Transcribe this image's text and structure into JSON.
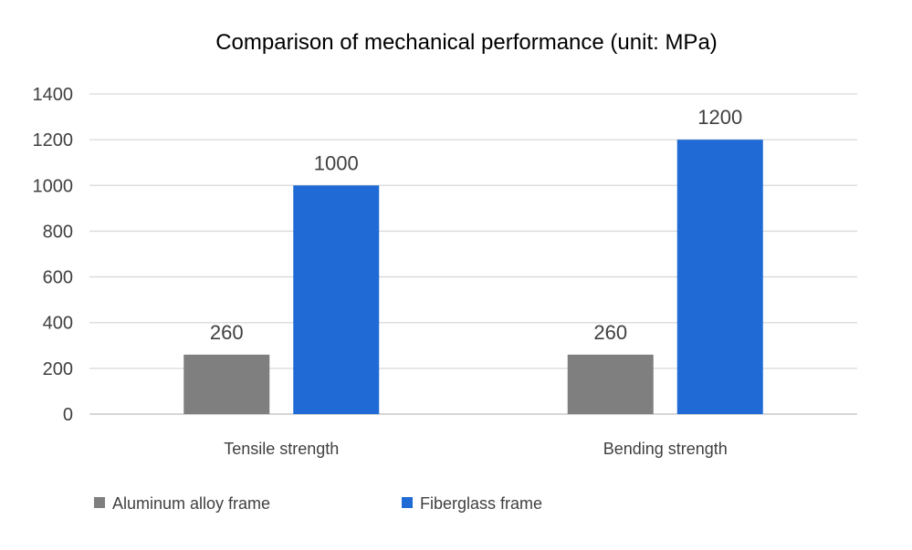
{
  "chart_data": {
    "type": "bar",
    "title": "Comparison of mechanical performance (unit: MPa)",
    "xlabel": "",
    "ylabel": "",
    "categories": [
      "Tensile strength",
      "Bending strength"
    ],
    "series": [
      {
        "name": "Aluminum alloy frame",
        "values": [
          260,
          260
        ],
        "color": "#7f7f7f"
      },
      {
        "name": "Fiberglass frame",
        "values": [
          1000,
          1200
        ],
        "color": "#1f6ad4"
      }
    ],
    "ylim": [
      0,
      1400
    ],
    "yticks": [
      0,
      200,
      400,
      600,
      800,
      1000,
      1200,
      1400
    ],
    "grid": true,
    "legend_position": "bottom",
    "data_labels": true,
    "colors": {
      "grid": "#d9d9d9",
      "axis": "#bfbfbf",
      "text": "#404040",
      "title": "#000000"
    }
  }
}
